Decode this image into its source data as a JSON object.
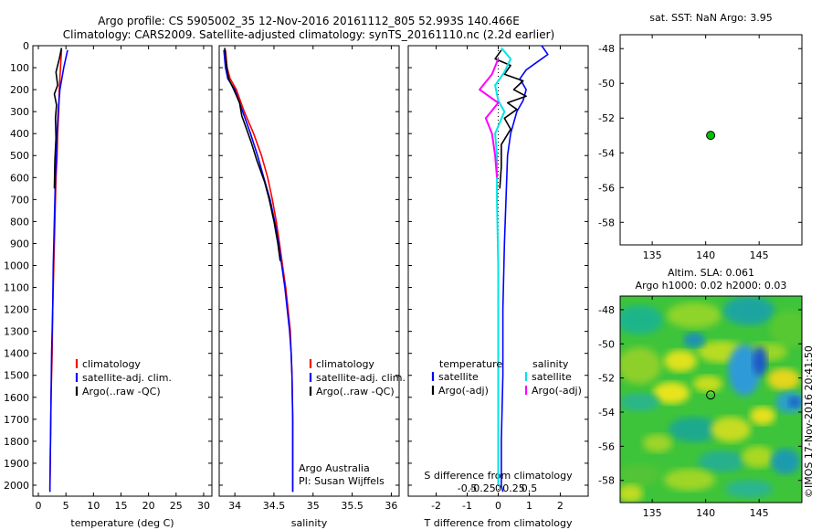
{
  "header": {
    "line1": "Argo profile: CS 5905002_35 12-Nov-2016 20161112_805 52.993S 140.466E",
    "line2": "Climatology: CARS2009. Satellite-adjusted climatology: synTS_20161110.nc (2.2d earlier)"
  },
  "credit": {
    "line1": "Argo Australia",
    "line2": "PI: Susan Wijffels",
    "vertical": "©IMOS 17-Nov-2016 20:41:50"
  },
  "colors": {
    "climatology": "#ff0000",
    "satellite": "#0000ff",
    "argo": "#000000",
    "satellite_salinity": "#00e5e5",
    "argo_salinity": "#ff00ff",
    "marker": "#00c000"
  },
  "chart_data": [
    {
      "id": "temperature",
      "type": "line",
      "xlabel": "temperature (deg C)",
      "ylabel": "",
      "xlim": [
        -1,
        31.5
      ],
      "ylim": [
        2050,
        0
      ],
      "x_ticks": [
        0,
        5,
        10,
        15,
        20,
        25,
        30
      ],
      "y_ticks": [
        0,
        100,
        200,
        300,
        400,
        500,
        600,
        700,
        800,
        900,
        1000,
        1100,
        1200,
        1300,
        1400,
        1500,
        1600,
        1700,
        1800,
        1900,
        2000
      ],
      "legend": [
        "climatology",
        "satellite-adj. clim.",
        "Argo(..raw -QC)"
      ],
      "series": [
        {
          "name": "climatology",
          "color_key": "climatology",
          "points": [
            [
              4.2,
              20
            ],
            [
              4.0,
              100
            ],
            [
              3.8,
              200
            ],
            [
              3.7,
              300
            ],
            [
              3.5,
              400
            ],
            [
              3.4,
              500
            ],
            [
              3.2,
              600
            ],
            [
              3.0,
              800
            ],
            [
              2.8,
              1000
            ],
            [
              2.6,
              1200
            ],
            [
              2.5,
              1400
            ],
            [
              2.3,
              1600
            ],
            [
              2.2,
              1800
            ],
            [
              2.1,
              2000
            ],
            [
              2.1,
              2030
            ]
          ]
        },
        {
          "name": "satellite-adj. clim.",
          "color_key": "satellite",
          "points": [
            [
              5.3,
              20
            ],
            [
              4.6,
              100
            ],
            [
              3.9,
              200
            ],
            [
              3.6,
              300
            ],
            [
              3.4,
              400
            ],
            [
              3.3,
              500
            ],
            [
              3.1,
              600
            ],
            [
              2.9,
              800
            ],
            [
              2.7,
              1000
            ],
            [
              2.6,
              1200
            ],
            [
              2.4,
              1400
            ],
            [
              2.3,
              1600
            ],
            [
              2.2,
              1800
            ],
            [
              2.1,
              2000
            ],
            [
              2.1,
              2030
            ]
          ]
        },
        {
          "name": "Argo(..raw -QC)",
          "color_key": "argo",
          "points": [
            [
              4.2,
              10
            ],
            [
              3.8,
              60
            ],
            [
              3.2,
              120
            ],
            [
              3.5,
              180
            ],
            [
              2.9,
              220
            ],
            [
              3.3,
              270
            ],
            [
              3.1,
              330
            ],
            [
              3.2,
              420
            ],
            [
              3.0,
              520
            ],
            [
              2.9,
              650
            ]
          ]
        }
      ]
    },
    {
      "id": "salinity",
      "type": "line",
      "xlabel": "salinity",
      "ylabel": "",
      "xlim": [
        33.8,
        36.1
      ],
      "ylim": [
        2050,
        0
      ],
      "x_ticks": [
        34,
        34.5,
        35,
        35.5,
        36
      ],
      "x_tick_labels": [
        "34",
        "34.5",
        "35",
        "35.5",
        "36"
      ],
      "legend": [
        "climatology",
        "satellite-adj. clim.",
        "Argo(..raw -QC)"
      ],
      "series": [
        {
          "name": "climatology",
          "color_key": "climatology",
          "points": [
            [
              33.88,
              20
            ],
            [
              33.9,
              100
            ],
            [
              33.94,
              150
            ],
            [
              34.02,
              200
            ],
            [
              34.12,
              300
            ],
            [
              34.24,
              400
            ],
            [
              34.34,
              500
            ],
            [
              34.42,
              600
            ],
            [
              34.48,
              700
            ],
            [
              34.53,
              800
            ],
            [
              34.57,
              900
            ],
            [
              34.61,
              1000
            ],
            [
              34.65,
              1100
            ],
            [
              34.68,
              1200
            ],
            [
              34.71,
              1300
            ],
            [
              34.72,
              1400
            ],
            [
              34.73,
              1500
            ],
            [
              34.74,
              1700
            ],
            [
              34.74,
              2000
            ],
            [
              34.74,
              2030
            ]
          ]
        },
        {
          "name": "satellite-adj. clim.",
          "color_key": "satellite",
          "points": [
            [
              33.86,
              20
            ],
            [
              33.88,
              100
            ],
            [
              33.91,
              150
            ],
            [
              34.0,
              200
            ],
            [
              34.1,
              300
            ],
            [
              34.2,
              400
            ],
            [
              34.29,
              500
            ],
            [
              34.37,
              600
            ],
            [
              34.45,
              700
            ],
            [
              34.51,
              800
            ],
            [
              34.56,
              900
            ],
            [
              34.6,
              1000
            ],
            [
              34.64,
              1100
            ],
            [
              34.67,
              1200
            ],
            [
              34.7,
              1300
            ],
            [
              34.72,
              1400
            ],
            [
              34.73,
              1500
            ],
            [
              34.74,
              1700
            ],
            [
              34.74,
              2000
            ],
            [
              34.74,
              2030
            ]
          ]
        },
        {
          "name": "Argo(..raw -QC)",
          "color_key": "argo",
          "points": [
            [
              33.87,
              10
            ],
            [
              33.89,
              80
            ],
            [
              33.92,
              150
            ],
            [
              34.0,
              210
            ],
            [
              34.06,
              260
            ],
            [
              34.09,
              320
            ],
            [
              34.15,
              380
            ],
            [
              34.21,
              440
            ],
            [
              34.28,
              520
            ],
            [
              34.38,
              620
            ],
            [
              34.44,
              700
            ],
            [
              34.5,
              800
            ],
            [
              34.55,
              900
            ],
            [
              34.58,
              980
            ]
          ]
        }
      ]
    },
    {
      "id": "difference",
      "type": "line",
      "xlabel": "T difference from climatology",
      "x2label": "S difference from climatology",
      "xlim": [
        -2.9,
        2.9
      ],
      "ylim": [
        2050,
        0
      ],
      "x_ticks": [
        -2,
        -1,
        0,
        1,
        2
      ],
      "s_ticks": [
        -0.5,
        -0.25,
        0,
        0.25,
        0.5
      ],
      "s_tick_labels": [
        "-0.5",
        "-0.25",
        "0",
        "0.25",
        "0.5"
      ],
      "legend_left_title": "temperature",
      "legend_right_title": "salinity",
      "legend": [
        "satellite",
        "Argo(-adj)",
        "satellite",
        "Argo(-adj)"
      ],
      "series": [
        {
          "name": "T satellite",
          "color_key": "satellite",
          "points": [
            [
              1.4,
              0
            ],
            [
              1.6,
              40
            ],
            [
              1.2,
              80
            ],
            [
              0.9,
              110
            ],
            [
              0.7,
              150
            ],
            [
              0.9,
              200
            ],
            [
              0.8,
              250
            ],
            [
              0.6,
              300
            ],
            [
              0.4,
              400
            ],
            [
              0.3,
              500
            ],
            [
              0.25,
              700
            ],
            [
              0.2,
              900
            ],
            [
              0.15,
              1200
            ],
            [
              0.15,
              1500
            ],
            [
              0.1,
              1800
            ],
            [
              0.1,
              2000
            ],
            [
              0.15,
              2030
            ]
          ]
        },
        {
          "name": "T Argo(-adj)",
          "color_key": "argo",
          "points": [
            [
              0.1,
              20
            ],
            [
              -0.1,
              60
            ],
            [
              0.4,
              90
            ],
            [
              0.2,
              130
            ],
            [
              0.8,
              160
            ],
            [
              0.5,
              200
            ],
            [
              0.9,
              230
            ],
            [
              0.3,
              260
            ],
            [
              0.6,
              290
            ],
            [
              0.2,
              330
            ],
            [
              0.4,
              380
            ],
            [
              0.1,
              450
            ],
            [
              0.1,
              550
            ],
            [
              0.05,
              650
            ]
          ]
        },
        {
          "name": "S satellite",
          "color_key": "satellite_salinity",
          "points": [
            [
              0.05,
              10
            ],
            [
              0.2,
              60
            ],
            [
              0.1,
              120
            ],
            [
              -0.05,
              180
            ],
            [
              0.0,
              250
            ],
            [
              0.1,
              300
            ],
            [
              -0.05,
              400
            ],
            [
              -0.02,
              500
            ],
            [
              -0.02,
              700
            ],
            [
              0.0,
              1000
            ],
            [
              0.0,
              1500
            ],
            [
              0.0,
              2000
            ]
          ]
        },
        {
          "name": "S Argo(-adj)",
          "color_key": "argo_salinity",
          "points": [
            [
              0.0,
              60
            ],
            [
              -0.1,
              130
            ],
            [
              -0.3,
              200
            ],
            [
              0.0,
              260
            ],
            [
              -0.2,
              330
            ],
            [
              -0.1,
              400
            ],
            [
              -0.05,
              500
            ],
            [
              -0.02,
              600
            ]
          ]
        }
      ]
    },
    {
      "id": "sst_map",
      "type": "scatter",
      "title": "sat. SST: NaN Argo: 3.95",
      "xlim": [
        132,
        149
      ],
      "ylim": [
        -59.3,
        -47.2
      ],
      "x_ticks": [
        135,
        140,
        145
      ],
      "y_ticks": [
        -48,
        -50,
        -52,
        -54,
        -56,
        -58
      ],
      "points": [
        {
          "x": 140.466,
          "y": -52.993
        }
      ]
    },
    {
      "id": "sla_map",
      "type": "heatmap",
      "title": "Altim. SLA: 0.061",
      "subtitle": "Argo h1000: 0.02 h2000: 0.03",
      "xlim": [
        132,
        149
      ],
      "ylim": [
        -59.3,
        -47.2
      ],
      "x_ticks": [
        135,
        140,
        145
      ],
      "y_ticks": [
        -48,
        -50,
        -52,
        -54,
        -56,
        -58
      ],
      "points": [
        {
          "x": 140.466,
          "y": -52.993
        }
      ]
    }
  ]
}
